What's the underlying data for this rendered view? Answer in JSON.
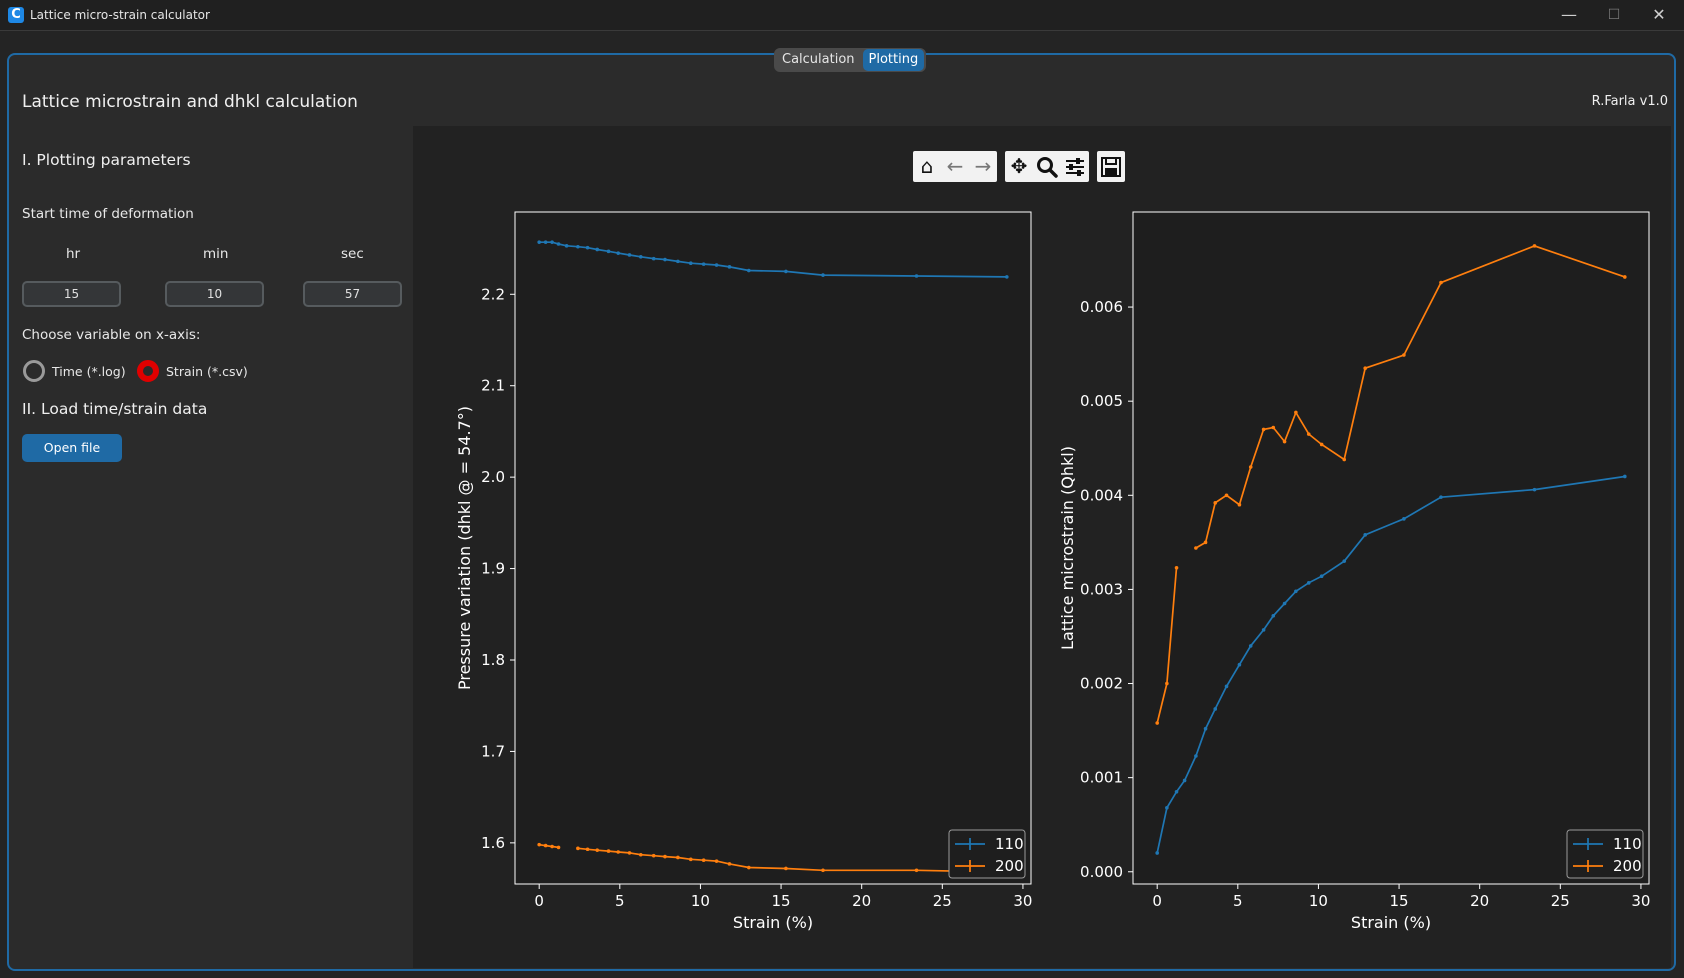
{
  "window": {
    "title": "Lattice micro-strain calculator",
    "icon": "C",
    "minimize": "—",
    "maximize": "☐",
    "close": "✕"
  },
  "tabs": [
    {
      "label": "Calculation"
    },
    {
      "label": "Plotting"
    }
  ],
  "header": {
    "title": "Lattice microstrain and dhkl calculation",
    "author": "R.Farla  v1.0"
  },
  "section1": {
    "heading": "I. Plotting parameters",
    "start_label": "Start time of deformation",
    "hr_label": "hr",
    "min_label": "min",
    "sec_label": "sec",
    "hr_value": "15",
    "min_value": "10",
    "sec_value": "57",
    "xaxis_label": "Choose variable on x-axis:",
    "radio_time": "Time (*.log)",
    "radio_strain": "Strain (*.csv)",
    "selected": "strain"
  },
  "section2": {
    "heading": "II. Load time/strain data",
    "open_button": "Open file"
  },
  "toolbar": {
    "home": "home-icon",
    "back": "arrow-left-icon",
    "forward": "arrow-right-icon",
    "pan": "move-icon",
    "zoom": "zoom-icon",
    "configure": "sliders-icon",
    "save": "save-icon"
  },
  "colors": {
    "accent": "#1f6aa5",
    "series_110": "#1f77b4",
    "series_200": "#ff7f0e",
    "radio_selected": "#e00000"
  },
  "chart_data": [
    {
      "type": "line",
      "xlabel": "Strain (%)",
      "ylabel": "Pressure variation (dhkl @ = 54.7°)",
      "xlim": [
        -1.5,
        30.5
      ],
      "ylim": [
        1.555,
        2.29
      ],
      "xticks": [
        0,
        5,
        10,
        15,
        20,
        25,
        30
      ],
      "yticks": [
        1.6,
        1.7,
        1.8,
        1.9,
        2.0,
        2.1,
        2.2
      ],
      "legend_position": "bottom-right",
      "series": [
        {
          "name": "110",
          "color": "#1f77b4",
          "segments": [
            {
              "x": [
                0,
                0.4,
                0.8,
                1.2,
                1.7,
                2.4,
                3.0,
                3.6,
                4.3,
                4.9,
                5.6,
                6.3,
                7.1,
                7.8,
                8.6,
                9.4,
                10.2,
                11.0,
                11.8,
                13.0,
                15.3,
                17.6,
                23.4,
                29.0
              ],
              "y": [
                2.257,
                2.257,
                2.257,
                2.255,
                2.253,
                2.252,
                2.251,
                2.249,
                2.247,
                2.245,
                2.243,
                2.241,
                2.239,
                2.238,
                2.236,
                2.234,
                2.233,
                2.232,
                2.23,
                2.226,
                2.225,
                2.221,
                2.22,
                2.219
              ]
            }
          ]
        },
        {
          "name": "200",
          "color": "#ff7f0e",
          "segments": [
            {
              "x": [
                0,
                0.4,
                0.8,
                1.2
              ],
              "y": [
                1.598,
                1.597,
                1.596,
                1.595
              ]
            },
            {
              "x": [
                2.4,
                3.0,
                3.6,
                4.3,
                4.9,
                5.6,
                6.3,
                7.1,
                7.8,
                8.6,
                9.4,
                10.2,
                11.0,
                11.8,
                13.0,
                15.3,
                17.6,
                23.4,
                29.0
              ],
              "y": [
                1.594,
                1.593,
                1.592,
                1.591,
                1.59,
                1.589,
                1.587,
                1.586,
                1.585,
                1.584,
                1.582,
                1.581,
                1.58,
                1.577,
                1.573,
                1.572,
                1.57,
                1.57,
                1.568
              ]
            }
          ]
        }
      ]
    },
    {
      "type": "line",
      "xlabel": "Strain (%)",
      "ylabel": "Lattice microstrain (Qhkl)",
      "xlim": [
        -1.5,
        30.5
      ],
      "ylim": [
        -0.00013,
        0.00701
      ],
      "xticks": [
        0,
        5,
        10,
        15,
        20,
        25,
        30
      ],
      "yticks": [
        0.0,
        0.001,
        0.002,
        0.003,
        0.004,
        0.005,
        0.006
      ],
      "ytick_labels": [
        "0.000",
        "0.001",
        "0.002",
        "0.003",
        "0.004",
        "0.005",
        "0.006"
      ],
      "legend_position": "bottom-right",
      "series": [
        {
          "name": "110",
          "color": "#1f77b4",
          "segments": [
            {
              "x": [
                0,
                0.6,
                1.2,
                1.7,
                2.4,
                3.0,
                3.6,
                4.3,
                5.1,
                5.8,
                6.6,
                7.2,
                7.9,
                8.6,
                9.4,
                10.2,
                11.6,
                12.9,
                15.3,
                17.6,
                23.4,
                29.0
              ],
              "y": [
                0.0002,
                0.00068,
                0.00085,
                0.00097,
                0.00123,
                0.00152,
                0.00173,
                0.00197,
                0.0022,
                0.0024,
                0.00257,
                0.00272,
                0.00285,
                0.00298,
                0.00307,
                0.00314,
                0.0033,
                0.00358,
                0.00375,
                0.00398,
                0.00406,
                0.0042
              ]
            }
          ]
        },
        {
          "name": "200",
          "color": "#ff7f0e",
          "segments": [
            {
              "x": [
                0,
                0.6,
                1.2
              ],
              "y": [
                0.00158,
                0.002,
                0.00323
              ]
            },
            {
              "x": [
                2.4,
                3.0,
                3.6,
                4.3,
                5.1,
                5.8,
                6.6,
                7.2,
                7.9,
                8.6,
                9.4,
                10.2,
                11.6,
                12.9,
                15.3,
                17.6,
                23.4,
                29.0
              ],
              "y": [
                0.00344,
                0.0035,
                0.00392,
                0.004,
                0.0039,
                0.0043,
                0.0047,
                0.00472,
                0.00457,
                0.00488,
                0.00465,
                0.00454,
                0.00438,
                0.00535,
                0.00549,
                0.00626,
                0.00665,
                0.00632
              ]
            }
          ]
        }
      ]
    }
  ]
}
